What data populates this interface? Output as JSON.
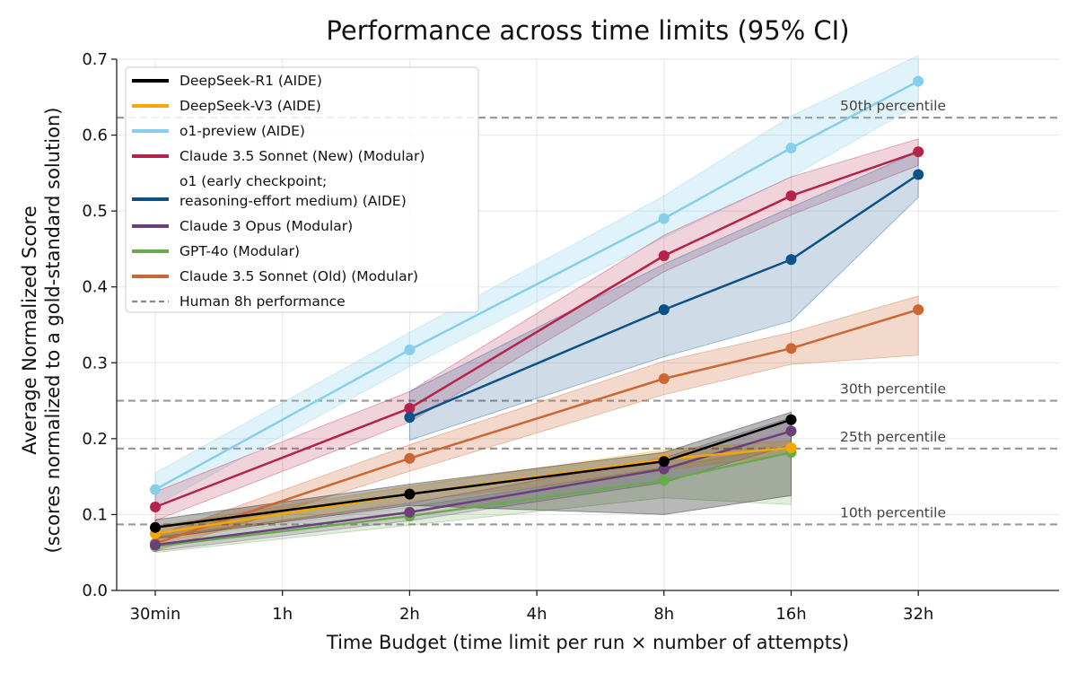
{
  "chart_data": {
    "type": "line",
    "title": "Performance across time limits (95% CI)",
    "xlabel": "Time Budget (time limit per run × number of attempts)",
    "ylabel_line1": "Average Normalized Score",
    "ylabel_line2": "(scores normalized to a gold-standard solution)",
    "x_ticks": [
      "30min",
      "1h",
      "2h",
      "4h",
      "8h",
      "16h",
      "32h"
    ],
    "y_ticks": [
      "0.0",
      "0.1",
      "0.2",
      "0.3",
      "0.4",
      "0.5",
      "0.6",
      "0.7"
    ],
    "ylim": [
      0,
      0.7
    ],
    "grid": true,
    "legend_position": "top-left",
    "human_percentiles": [
      {
        "label": "10th percentile",
        "value": 0.087
      },
      {
        "label": "25th percentile",
        "value": 0.187
      },
      {
        "label": "30th percentile",
        "value": 0.25
      },
      {
        "label": "50th percentile",
        "value": 0.623
      }
    ],
    "human_legend_label": "Human 8h performance",
    "series": [
      {
        "name": "o1-preview (AIDE)",
        "color": "#87ceeb",
        "legend_order": 2,
        "draw_order": 1,
        "band_opacity": 0.25,
        "x_index": [
          0,
          2,
          4,
          5,
          6
        ],
        "values": [
          0.133,
          0.317,
          0.49,
          0.583,
          0.671
        ],
        "ci_low": [
          0.112,
          0.295,
          0.465,
          0.545,
          0.64
        ],
        "ci_high": [
          0.155,
          0.34,
          0.52,
          0.625,
          0.705
        ]
      },
      {
        "name": "Claude 3.5 Sonnet (New) (Modular)",
        "color": "#b5234b",
        "legend_order": 3,
        "draw_order": 2,
        "band_opacity": 0.2,
        "x_index": [
          0,
          2,
          4,
          5,
          6
        ],
        "values": [
          0.11,
          0.24,
          0.441,
          0.52,
          0.578
        ],
        "ci_low": [
          0.092,
          0.222,
          0.42,
          0.495,
          0.56
        ],
        "ci_high": [
          0.13,
          0.262,
          0.468,
          0.545,
          0.595
        ]
      },
      {
        "name": "o1 (early checkpoint; reasoning-effort medium) (AIDE)",
        "legend_line1": "o1 (early checkpoint;",
        "legend_line2": "reasoning-effort medium) (AIDE)",
        "color": "#0d5286",
        "legend_order": 4,
        "draw_order": 3,
        "band_opacity": 0.2,
        "x_index": [
          2,
          4,
          5,
          6
        ],
        "values": [
          0.228,
          0.37,
          0.436,
          0.548
        ],
        "ci_low": [
          0.198,
          0.308,
          0.355,
          0.518
        ],
        "ci_high": [
          0.262,
          0.43,
          0.505,
          0.578
        ]
      },
      {
        "name": "Claude 3.5 Sonnet (Old) (Modular)",
        "color": "#cc6633",
        "legend_order": 7,
        "draw_order": 4,
        "band_opacity": 0.25,
        "x_index": [
          0,
          2,
          4,
          5,
          6
        ],
        "values": [
          0.062,
          0.174,
          0.279,
          0.319,
          0.37
        ],
        "ci_low": [
          0.052,
          0.157,
          0.258,
          0.298,
          0.31
        ],
        "ci_high": [
          0.072,
          0.192,
          0.302,
          0.34,
          0.388
        ]
      },
      {
        "name": "GPT-4o (Modular)",
        "color": "#6aaa4e",
        "legend_order": 6,
        "draw_order": 5,
        "band_opacity": 0.2,
        "x_index": [
          0,
          2,
          4,
          5
        ],
        "values": [
          0.058,
          0.098,
          0.145,
          0.182
        ],
        "ci_low": [
          0.05,
          0.086,
          0.122,
          0.113
        ],
        "ci_high": [
          0.066,
          0.11,
          0.162,
          0.19
        ]
      },
      {
        "name": "Claude 3 Opus (Modular)",
        "color": "#6b3f7a",
        "legend_order": 5,
        "draw_order": 6,
        "band_opacity": 0.2,
        "x_index": [
          0,
          2,
          4,
          5
        ],
        "values": [
          0.06,
          0.103,
          0.16,
          0.21
        ],
        "ci_low": [
          0.052,
          0.092,
          0.142,
          0.192
        ],
        "ci_high": [
          0.07,
          0.115,
          0.175,
          0.228
        ]
      },
      {
        "name": "DeepSeek-V3 (AIDE)",
        "color": "#f5a800",
        "legend_order": 1,
        "draw_order": 7,
        "band_opacity": 0.25,
        "x_index": [
          0,
          2,
          4,
          5
        ],
        "values": [
          0.075,
          0.127,
          0.173,
          0.188
        ],
        "ci_low": [
          0.065,
          0.117,
          0.158,
          0.18
        ],
        "ci_high": [
          0.085,
          0.137,
          0.185,
          0.198
        ]
      },
      {
        "name": "DeepSeek-R1 (AIDE)",
        "color": "#000000",
        "legend_order": 0,
        "draw_order": 8,
        "band_opacity": 0.28,
        "x_index": [
          0,
          2,
          4,
          5
        ],
        "values": [
          0.083,
          0.127,
          0.17,
          0.225
        ],
        "ci_low": [
          0.068,
          0.112,
          0.1,
          0.125
        ],
        "ci_high": [
          0.093,
          0.14,
          0.182,
          0.235
        ]
      }
    ]
  }
}
